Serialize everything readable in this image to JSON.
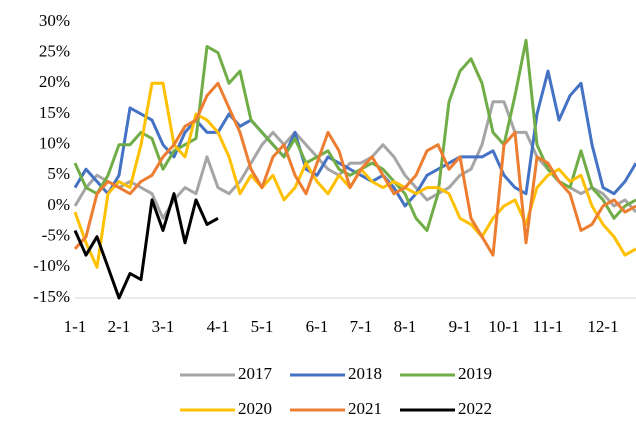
{
  "chart_data": {
    "type": "line",
    "categories": [
      "1-1",
      null,
      null,
      null,
      "2-1",
      null,
      null,
      null,
      "3-1",
      null,
      null,
      null,
      null,
      "4-1",
      null,
      null,
      null,
      "5-1",
      null,
      null,
      null,
      null,
      "6-1",
      null,
      null,
      null,
      "7-1",
      null,
      null,
      null,
      "8-1",
      null,
      null,
      null,
      null,
      "9-1",
      null,
      null,
      null,
      "10-1",
      null,
      null,
      null,
      "11-1",
      null,
      null,
      null,
      null,
      "12-1",
      null,
      null,
      null
    ],
    "ylim": [
      -15,
      30
    ],
    "yticks": [
      {
        "value": -15,
        "label": "-15%"
      },
      {
        "value": -10,
        "label": "-10%"
      },
      {
        "value": -5,
        "label": "-5%"
      },
      {
        "value": 0,
        "label": "0%"
      },
      {
        "value": 5,
        "label": "5%"
      },
      {
        "value": 10,
        "label": "10%"
      },
      {
        "value": 15,
        "label": "15%"
      },
      {
        "value": 20,
        "label": "20%"
      },
      {
        "value": 25,
        "label": "25%"
      },
      {
        "value": 30,
        "label": "30%"
      }
    ],
    "grid": false,
    "series": [
      {
        "name": "2017",
        "color": "#a5a5a5",
        "values": [
          0,
          3,
          5,
          4,
          3,
          4,
          3,
          2,
          -2,
          1,
          3,
          2,
          8,
          3,
          2,
          4,
          7,
          10,
          12,
          10,
          12,
          10,
          8,
          6,
          5,
          7,
          7,
          8,
          10,
          8,
          5,
          3,
          1,
          2,
          3,
          5,
          6,
          10,
          17,
          17,
          12,
          12,
          8,
          6,
          4,
          3,
          2,
          3,
          2,
          0,
          1,
          -1
        ]
      },
      {
        "name": "2018",
        "color": "#4472c4",
        "values": [
          3,
          6,
          4,
          2,
          5,
          16,
          15,
          14,
          10,
          8,
          12,
          14,
          12,
          12,
          15,
          13,
          14,
          12,
          10,
          8,
          12,
          6,
          5,
          8,
          7,
          6,
          5,
          4,
          5,
          3,
          0,
          2,
          5,
          6,
          7,
          8,
          8,
          8,
          9,
          5,
          3,
          2,
          15,
          22,
          14,
          18,
          20,
          10,
          3,
          2,
          4,
          7
        ]
      },
      {
        "name": "2019",
        "color": "#70ad47",
        "values": [
          7,
          3,
          2,
          5,
          10,
          10,
          12,
          11,
          6,
          9,
          10,
          11,
          26,
          25,
          20,
          22,
          14,
          12,
          10,
          8,
          11,
          7,
          8,
          9,
          6,
          5,
          6,
          7,
          6,
          4,
          2,
          -2,
          -4,
          2,
          17,
          22,
          24,
          20,
          12,
          10,
          18,
          27,
          10,
          6,
          4,
          3,
          9,
          3,
          1,
          -2,
          0,
          1
        ]
      },
      {
        "name": "2020",
        "color": "#ffc000",
        "values": [
          -1,
          -6,
          -10,
          2,
          4,
          3,
          10,
          20,
          20,
          10,
          8,
          15,
          14,
          12,
          8,
          2,
          5,
          3,
          5,
          1,
          3,
          7,
          4,
          2,
          5,
          3,
          6,
          4,
          3,
          4,
          3,
          2,
          3,
          3,
          2,
          -2,
          -3,
          -5,
          -2,
          0,
          1,
          -3,
          3,
          5,
          6,
          4,
          5,
          0,
          -3,
          -5,
          -8,
          -7
        ]
      },
      {
        "name": "2021",
        "color": "#ed7d31",
        "values": [
          -7,
          -5,
          2,
          4,
          3,
          2,
          4,
          5,
          8,
          10,
          13,
          14,
          18,
          20,
          16,
          12,
          6,
          3,
          8,
          10,
          5,
          2,
          7,
          12,
          9,
          3,
          6,
          8,
          5,
          2,
          3,
          5,
          9,
          10,
          6,
          8,
          -2,
          -5,
          -8,
          10,
          12,
          -6,
          8,
          7,
          4,
          2,
          -4,
          -3,
          0,
          1,
          -1,
          0
        ]
      },
      {
        "name": "2022",
        "color": "#000000",
        "values": [
          -4,
          -8,
          -5,
          -10,
          -15,
          -11,
          -12,
          1,
          -4,
          2,
          -6,
          1,
          -3,
          -2,
          null,
          null,
          null,
          null,
          null,
          null,
          null,
          null,
          null,
          null,
          null,
          null,
          null,
          null,
          null,
          null,
          null,
          null,
          null,
          null,
          null,
          null,
          null,
          null,
          null,
          null,
          null,
          null,
          null,
          null,
          null,
          null,
          null,
          null,
          null,
          null,
          null,
          null
        ]
      }
    ]
  }
}
